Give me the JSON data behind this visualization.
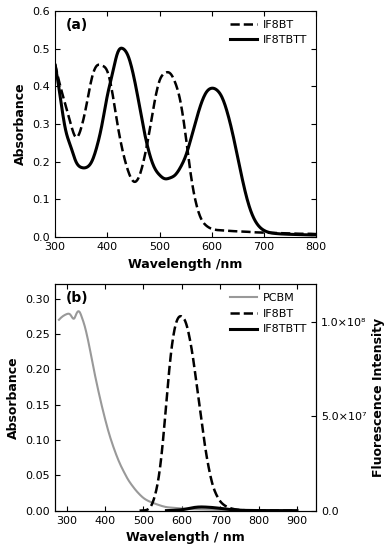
{
  "panel_a": {
    "title": "(a)",
    "xlabel": "Wavelength /nm",
    "ylabel": "Absorbance",
    "xlim": [
      300,
      800
    ],
    "ylim": [
      0.0,
      0.6
    ],
    "yticks": [
      0.0,
      0.1,
      0.2,
      0.3,
      0.4,
      0.5,
      0.6
    ],
    "xticks": [
      300,
      400,
      500,
      600,
      700,
      800
    ],
    "IF8BT": {
      "x": [
        300,
        310,
        320,
        330,
        340,
        350,
        360,
        370,
        380,
        390,
        400,
        410,
        420,
        430,
        440,
        450,
        460,
        470,
        480,
        490,
        500,
        510,
        520,
        530,
        540,
        550,
        560,
        570,
        580,
        590,
        600,
        620,
        640,
        660,
        680,
        700,
        720,
        740,
        760,
        780,
        800
      ],
      "y": [
        0.46,
        0.4,
        0.35,
        0.3,
        0.265,
        0.29,
        0.35,
        0.42,
        0.455,
        0.455,
        0.44,
        0.38,
        0.295,
        0.225,
        0.175,
        0.148,
        0.158,
        0.205,
        0.275,
        0.355,
        0.415,
        0.435,
        0.435,
        0.41,
        0.36,
        0.27,
        0.165,
        0.09,
        0.048,
        0.03,
        0.022,
        0.018,
        0.016,
        0.015,
        0.013,
        0.012,
        0.011,
        0.01,
        0.009,
        0.009,
        0.008
      ],
      "style": "dashed",
      "color": "#000000",
      "linewidth": 1.8,
      "label": "IF8BT"
    },
    "IF8TBTT": {
      "x": [
        300,
        310,
        320,
        330,
        340,
        350,
        360,
        370,
        380,
        390,
        400,
        410,
        420,
        430,
        440,
        450,
        460,
        470,
        480,
        490,
        500,
        510,
        520,
        530,
        540,
        550,
        560,
        570,
        580,
        590,
        600,
        610,
        620,
        630,
        640,
        650,
        660,
        670,
        680,
        700,
        720,
        740,
        760,
        780,
        800
      ],
      "y": [
        0.455,
        0.37,
        0.285,
        0.24,
        0.2,
        0.185,
        0.185,
        0.2,
        0.24,
        0.3,
        0.375,
        0.435,
        0.49,
        0.5,
        0.48,
        0.43,
        0.36,
        0.285,
        0.225,
        0.185,
        0.165,
        0.155,
        0.157,
        0.165,
        0.185,
        0.215,
        0.26,
        0.31,
        0.355,
        0.385,
        0.395,
        0.39,
        0.37,
        0.33,
        0.275,
        0.21,
        0.145,
        0.09,
        0.052,
        0.018,
        0.01,
        0.008,
        0.007,
        0.006,
        0.006
      ],
      "style": "solid",
      "color": "#000000",
      "linewidth": 2.2,
      "label": "IF8TBTT"
    }
  },
  "panel_b": {
    "title": "(b)",
    "xlabel": "Wavelength / nm",
    "ylabel": "Absorbance",
    "ylabel_right": "Fluorescence Intensity",
    "xlim": [
      270,
      950
    ],
    "ylim_left": [
      0.0,
      0.32
    ],
    "ylim_right": [
      0.0,
      120000000.0
    ],
    "yticks_left": [
      0.0,
      0.05,
      0.1,
      0.15,
      0.2,
      0.25,
      0.3
    ],
    "yticks_right_vals": [
      0.0,
      50000000.0,
      100000000.0
    ],
    "yticks_right_labels": [
      "0.0",
      "5.0×10⁷",
      "1.0×10⁸"
    ],
    "xticks": [
      300,
      400,
      500,
      600,
      700,
      800,
      900
    ],
    "PCBM": {
      "x": [
        280,
        290,
        300,
        310,
        320,
        325,
        330,
        335,
        340,
        345,
        350,
        360,
        370,
        380,
        390,
        400,
        410,
        420,
        430,
        440,
        450,
        460,
        470,
        480,
        490,
        500,
        520,
        540,
        560,
        580,
        600,
        650,
        700,
        750,
        800,
        850,
        900
      ],
      "y": [
        0.27,
        0.275,
        0.278,
        0.277,
        0.272,
        0.278,
        0.282,
        0.28,
        0.273,
        0.265,
        0.255,
        0.23,
        0.202,
        0.176,
        0.152,
        0.13,
        0.11,
        0.093,
        0.078,
        0.065,
        0.054,
        0.044,
        0.036,
        0.029,
        0.023,
        0.018,
        0.012,
        0.008,
        0.005,
        0.004,
        0.003,
        0.002,
        0.001,
        0.001,
        0.0,
        0.0,
        0.0
      ],
      "style": "solid",
      "color": "#999999",
      "linewidth": 1.5,
      "label": "PCBM"
    },
    "IF8BT_emission": {
      "x": [
        490,
        500,
        510,
        520,
        530,
        540,
        550,
        560,
        570,
        580,
        590,
        600,
        610,
        620,
        630,
        640,
        650,
        660,
        670,
        680,
        690,
        700,
        710,
        720,
        730,
        740,
        760,
        780,
        800,
        830,
        860,
        900
      ],
      "y": [
        0.0,
        100000.0,
        500000.0,
        2500000.0,
        8000000.0,
        18000000.0,
        35000000.0,
        58000000.0,
        80000000.0,
        95000000.0,
        102000000.0,
        103000000.0,
        100000000.0,
        92000000.0,
        80000000.0,
        65000000.0,
        50000000.0,
        35000000.0,
        23000000.0,
        14000000.0,
        8500000.0,
        5000000.0,
        3000000.0,
        1800000.0,
        1100000.0,
        650000.0,
        250000.0,
        100000.0,
        40000.0,
        10000.0,
        3000.0,
        500.0
      ],
      "style": "dashed",
      "color": "#000000",
      "linewidth": 1.8,
      "label": "IF8BT"
    },
    "IF8TBTT_emission": {
      "x": [
        560,
        580,
        600,
        610,
        620,
        630,
        640,
        650,
        660,
        670,
        680,
        690,
        700,
        710,
        720,
        730,
        740,
        750,
        760,
        770,
        780,
        800,
        830,
        860,
        900
      ],
      "y": [
        0.0,
        150000.0,
        500000.0,
        800000.0,
        1200000.0,
        1600000.0,
        1850000.0,
        1950000.0,
        1900000.0,
        1800000.0,
        1650000.0,
        1450000.0,
        1200000.0,
        950000.0,
        700000.0,
        500000.0,
        350000.0,
        240000.0,
        160000.0,
        110000.0,
        75000.0,
        35000.0,
        12000.0,
        4000.0,
        1000.0
      ],
      "style": "solid",
      "color": "#000000",
      "linewidth": 2.2,
      "label": "IF8TBTT"
    }
  }
}
